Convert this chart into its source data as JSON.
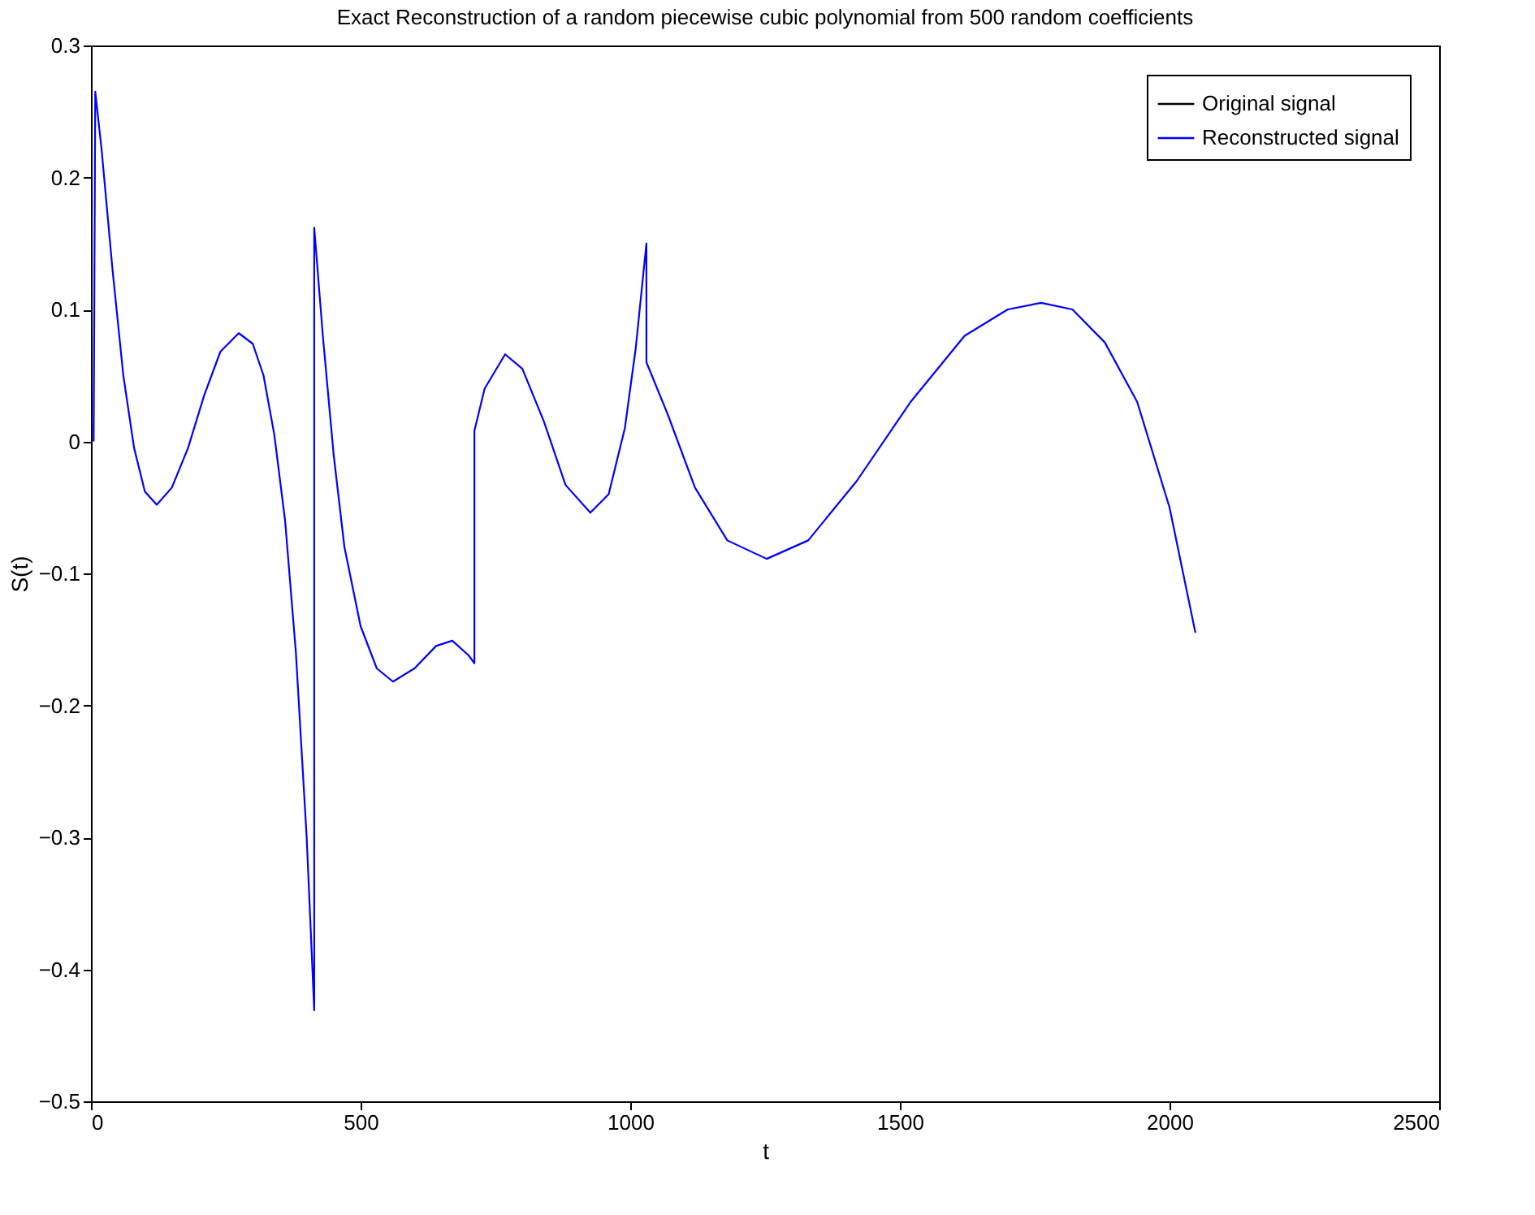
{
  "chart_data": {
    "type": "line",
    "title": "Exact Reconstruction of a random piecewise cubic polynomial from 500 random coefficients",
    "xlabel": "t",
    "ylabel": "S(t)",
    "xlim": [
      0,
      2500
    ],
    "xticks": [
      0,
      500,
      1000,
      1500,
      2000,
      2500
    ],
    "ylim": [
      -0.5,
      0.3
    ],
    "yticks": [
      -0.5,
      -0.4,
      -0.3,
      -0.2,
      -0.1,
      0,
      0.1,
      0.2,
      0.3
    ],
    "grid": false,
    "legend": "top right",
    "marker": "none",
    "line_style": "solid",
    "series": [
      {
        "name": "Original signal",
        "color": "#000000"
      },
      {
        "name": "Reconstructed signal",
        "color": "#0000ff",
        "x": [
          5,
          8,
          20,
          40,
          60,
          80,
          100,
          122,
          150,
          180,
          210,
          240,
          274,
          300,
          320,
          340,
          360,
          380,
          400,
          414,
          414,
          430,
          450,
          470,
          500,
          530,
          560,
          600,
          640,
          670,
          700,
          711,
          711,
          730,
          768,
          800,
          840,
          880,
          926,
          960,
          990,
          1010,
          1030,
          1030,
          1070,
          1120,
          1180,
          1253,
          1330,
          1420,
          1520,
          1620,
          1700,
          1762,
          1820,
          1880,
          1940,
          2000,
          2048
        ],
        "values": [
          0,
          0.265,
          0.22,
          0.13,
          0.05,
          -0.005,
          -0.038,
          -0.048,
          -0.035,
          -0.005,
          0.035,
          0.068,
          0.082,
          0.074,
          0.05,
          0.005,
          -0.06,
          -0.16,
          -0.3,
          -0.431,
          0.162,
          0.08,
          -0.01,
          -0.08,
          -0.14,
          -0.172,
          -0.182,
          -0.172,
          -0.155,
          -0.151,
          -0.162,
          -0.168,
          0.008,
          0.04,
          0.066,
          0.055,
          0.015,
          -0.033,
          -0.054,
          -0.04,
          0.01,
          0.07,
          0.15,
          0.06,
          0.02,
          -0.035,
          -0.075,
          -0.089,
          -0.075,
          -0.03,
          0.03,
          0.08,
          0.1,
          0.105,
          0.1,
          0.075,
          0.03,
          -0.05,
          -0.145
        ]
      }
    ]
  }
}
